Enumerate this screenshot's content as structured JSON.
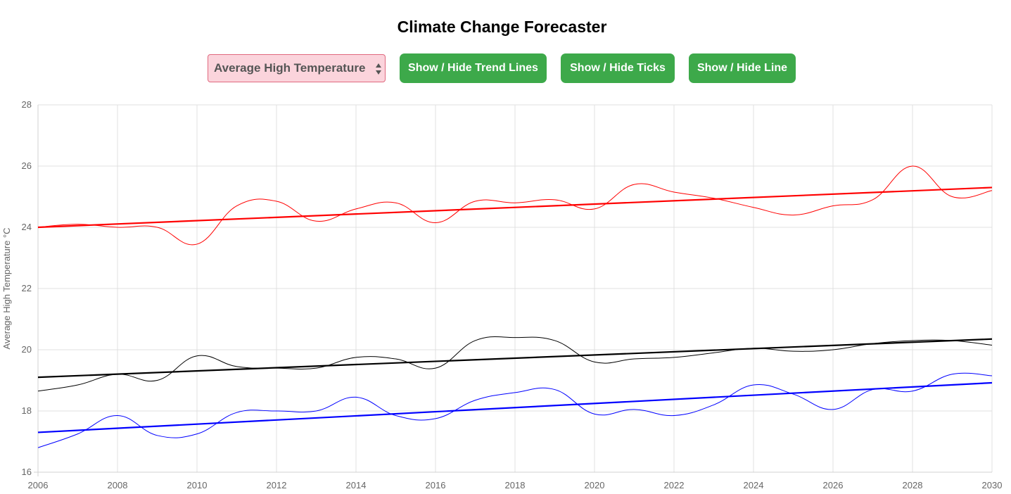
{
  "page": {
    "title": "Climate Change Forecaster"
  },
  "controls": {
    "metric_select": {
      "selected": "Average High Temperature",
      "color": "#fbd4dc"
    },
    "trend_button": "Show / Hide Trend Lines",
    "ticks_button": "Show / Hide Ticks",
    "line_button": "Show / Hide Line",
    "button_color": "#3da94a"
  },
  "chart_data": {
    "type": "line",
    "ylabel": "Average High Temperature °C",
    "xlabel": "",
    "xlim": [
      2006,
      2030
    ],
    "ylim": [
      16,
      28
    ],
    "x_ticks": [
      2006,
      2008,
      2010,
      2012,
      2014,
      2016,
      2018,
      2020,
      2022,
      2024,
      2026,
      2028,
      2030
    ],
    "y_ticks": [
      16,
      18,
      20,
      22,
      24,
      26,
      28
    ],
    "grid": true,
    "x": [
      2006,
      2007,
      2008,
      2009,
      2010,
      2011,
      2012,
      2013,
      2014,
      2015,
      2016,
      2017,
      2018,
      2019,
      2020,
      2021,
      2022,
      2023,
      2024,
      2025,
      2026,
      2027,
      2028,
      2029,
      2030
    ],
    "series": [
      {
        "color": "#ff0000",
        "values": [
          24.0,
          24.1,
          24.0,
          24.0,
          23.45,
          24.7,
          24.85,
          24.2,
          24.6,
          24.8,
          24.15,
          24.85,
          24.8,
          24.9,
          24.6,
          25.4,
          25.15,
          24.95,
          24.65,
          24.4,
          24.7,
          24.9,
          26.0,
          25.0,
          25.2
        ],
        "trend": [
          24.0,
          25.3
        ]
      },
      {
        "color": "#000000",
        "values": [
          18.65,
          18.85,
          19.2,
          19.0,
          19.8,
          19.45,
          19.4,
          19.4,
          19.75,
          19.7,
          19.4,
          20.3,
          20.4,
          20.3,
          19.6,
          19.7,
          19.75,
          19.9,
          20.05,
          19.95,
          20.0,
          20.2,
          20.3,
          20.3,
          20.15
        ],
        "trend": [
          19.1,
          20.35
        ]
      },
      {
        "color": "#0000ff",
        "values": [
          16.8,
          17.25,
          17.85,
          17.2,
          17.25,
          17.95,
          18.0,
          18.0,
          18.45,
          17.85,
          17.75,
          18.35,
          18.6,
          18.7,
          17.9,
          18.05,
          17.85,
          18.2,
          18.85,
          18.55,
          18.05,
          18.7,
          18.65,
          19.2,
          19.15
        ],
        "trend": [
          17.3,
          18.92
        ]
      }
    ]
  }
}
